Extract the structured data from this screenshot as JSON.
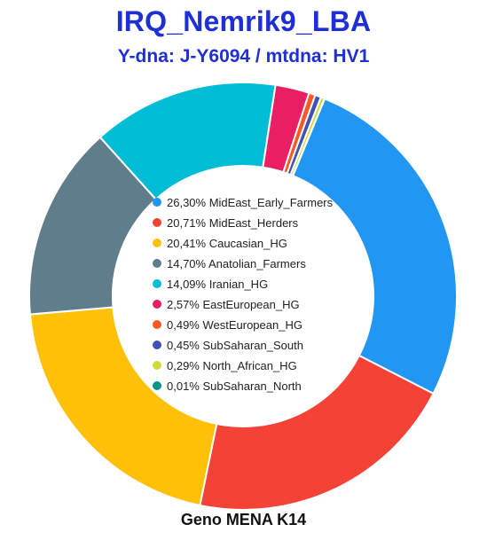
{
  "title": "IRQ_Nemrik9_LBA",
  "subtitle": "Y-dna: J-Y6094 / mtdna: HV1",
  "footer": "Geno MENA K14",
  "chart_data": {
    "type": "pie",
    "style": "donut",
    "legend_placement": "center",
    "slices": [
      {
        "label": "MidEast_Early_Farmers",
        "value": 26.3,
        "display": "26,30%",
        "color": "#2196f3"
      },
      {
        "label": "MidEast_Herders",
        "value": 20.71,
        "display": "20,71%",
        "color": "#f44336"
      },
      {
        "label": "Caucasian_HG",
        "value": 20.41,
        "display": "20,41%",
        "color": "#ffc107"
      },
      {
        "label": "Anatolian_Farmers",
        "value": 14.7,
        "display": "14,70%",
        "color": "#607d8b"
      },
      {
        "label": "Iranian_HG",
        "value": 14.09,
        "display": "14,09%",
        "color": "#00bcd4"
      },
      {
        "label": "EastEuropean_HG",
        "value": 2.57,
        "display": "2,57%",
        "color": "#e91e63"
      },
      {
        "label": "WestEuropean_HG",
        "value": 0.49,
        "display": "0,49%",
        "color": "#ff5722"
      },
      {
        "label": "SubSaharan_South",
        "value": 0.45,
        "display": "0,45%",
        "color": "#3f51b5"
      },
      {
        "label": "North_African_HG",
        "value": 0.29,
        "display": "0,29%",
        "color": "#cddc39"
      },
      {
        "label": "SubSaharan_North",
        "value": 0.01,
        "display": "0,01%",
        "color": "#009688"
      }
    ]
  }
}
